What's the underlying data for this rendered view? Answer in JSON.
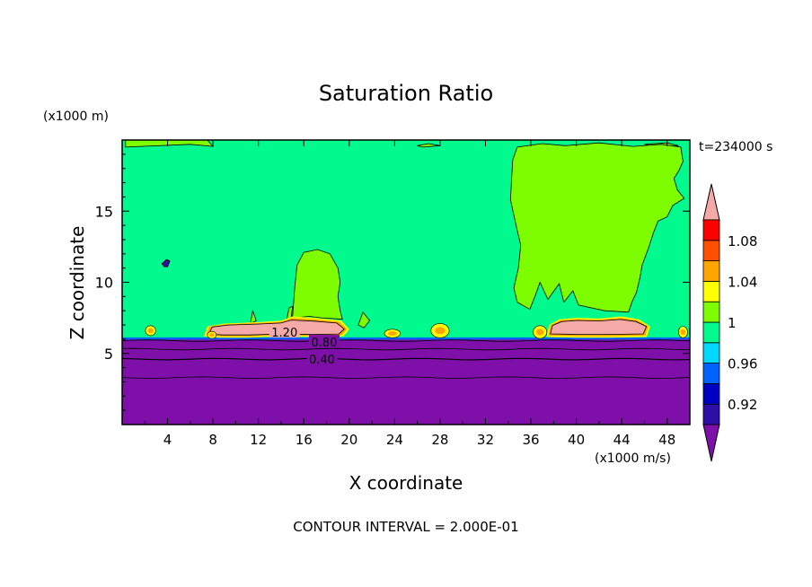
{
  "chart_data": {
    "type": "heatmap",
    "title": "Saturation Ratio",
    "time_label": "t=234000 s",
    "xlabel": "X coordinate",
    "ylabel": "Z coordinate",
    "x_unit_label": "(x1000 m/s)",
    "y_unit_label": "(x1000 m)",
    "xlim": [
      0,
      50
    ],
    "ylim": [
      0,
      20
    ],
    "xticks": [
      4,
      8,
      12,
      16,
      20,
      24,
      28,
      32,
      36,
      40,
      44,
      48
    ],
    "yticks": [
      5,
      10,
      15
    ],
    "contour_interval_text": "CONTOUR INTERVAL = 2.000E-01",
    "contour_labels": [
      {
        "text": "1.20",
        "x": 14.3,
        "z": 6.5
      },
      {
        "text": "0.80",
        "x": 17.8,
        "z": 5.8
      },
      {
        "text": "0.40",
        "x": 17.6,
        "z": 4.6
      }
    ],
    "colorbar": {
      "levels": [
        0.9,
        0.92,
        0.94,
        0.96,
        0.98,
        1.0,
        1.02,
        1.04,
        1.06,
        1.08,
        1.1
      ],
      "tick_labels": [
        "0.92",
        "0.96",
        "1",
        "1.04",
        "1.08"
      ],
      "colors": [
        "#7e0fa8",
        "#2d0fa8",
        "#0000c4",
        "#0063ff",
        "#00d8ff",
        "#00fa8e",
        "#7efc00",
        "#ffff00",
        "#ffa500",
        "#ff5000",
        "#ff0000",
        "#f5aaa8"
      ]
    },
    "field": {
      "background_upper": "#00fa8e",
      "background_lower": "#7e0fa8",
      "layer_boundary_z": 6.0,
      "regions": [
        {
          "kind": "moist-plume",
          "x": [
            34.5,
            49.5
          ],
          "z": [
            6.5,
            19.5
          ],
          "color": "#7efc00"
        },
        {
          "kind": "moist-plume",
          "x": [
            12.0,
            19.5
          ],
          "z": [
            6.5,
            12.3
          ],
          "color": "#7efc00"
        },
        {
          "kind": "supersaturated-cloud",
          "x": [
            7.0,
            20.0
          ],
          "z": [
            6.0,
            7.5
          ],
          "color": "#f5aaa8"
        },
        {
          "kind": "supersaturated-cloud",
          "x": [
            37.5,
            46.5
          ],
          "z": [
            6.0,
            7.4
          ],
          "color": "#f5aaa8"
        }
      ]
    }
  }
}
